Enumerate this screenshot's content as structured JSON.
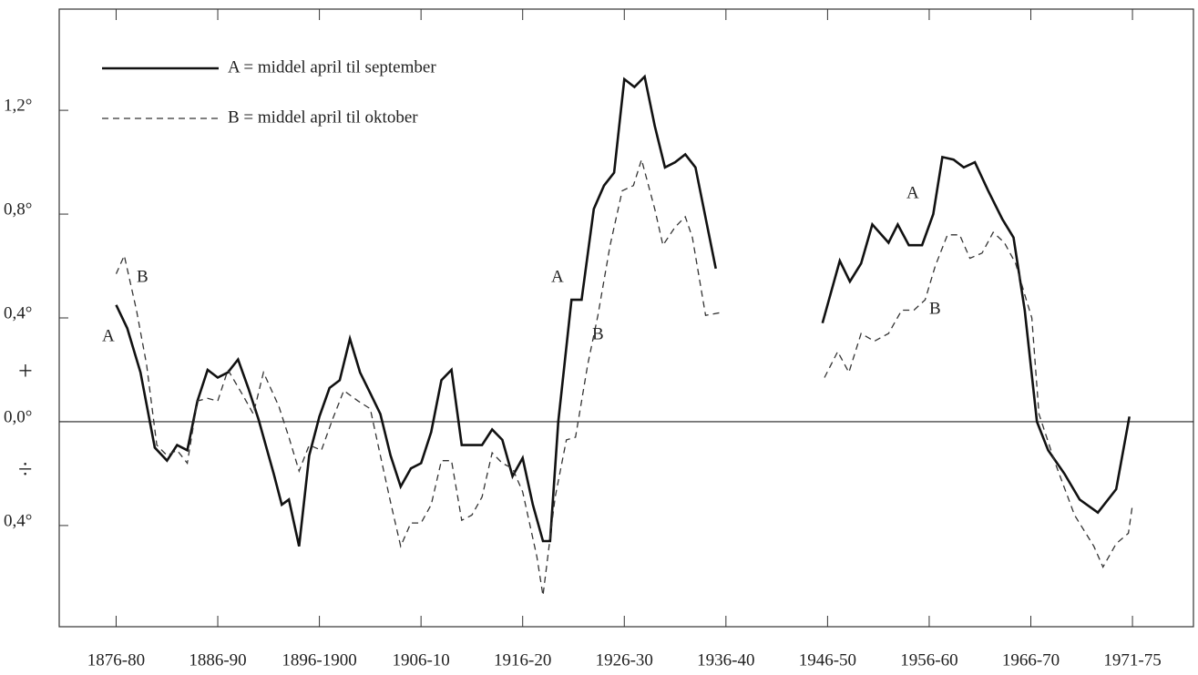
{
  "chart_data": {
    "type": "line",
    "xlim": [
      1870.4,
      1982
    ],
    "ylim": [
      -0.79,
      1.59
    ],
    "xticks": [
      {
        "value": 1876,
        "label": "1876-80"
      },
      {
        "value": 1886,
        "label": "1886-90"
      },
      {
        "value": 1896,
        "label": "1896-1900"
      },
      {
        "value": 1906,
        "label": "1906-10"
      },
      {
        "value": 1916,
        "label": "1916-20"
      },
      {
        "value": 1926,
        "label": "1926-30"
      },
      {
        "value": 1936,
        "label": "1936-40"
      },
      {
        "value": 1946,
        "label": "1946-50"
      },
      {
        "value": 1956,
        "label": "1956-60"
      },
      {
        "value": 1966,
        "label": "1966-70"
      },
      {
        "value": 1976,
        "label": "1971-75"
      }
    ],
    "yticks": [
      {
        "value": 1.2,
        "label": "1,2°"
      },
      {
        "value": 0.8,
        "label": "0,8°"
      },
      {
        "value": 0.4,
        "label": "0,4°"
      },
      {
        "value": 0,
        "label": "0,0°"
      },
      {
        "value": -0.4,
        "label": "0,4°"
      }
    ],
    "annotations": [
      "+",
      "÷",
      "A",
      "B",
      "A",
      "B",
      "A",
      "B"
    ],
    "series": [
      {
        "name": "A = middel april til september",
        "color": "#111",
        "dash": "none",
        "x": [
          1876,
          1877.1,
          1878.4,
          1879.8,
          1881,
          1882,
          1883,
          1884,
          1885,
          1886,
          1887,
          1888,
          1889,
          1890,
          1891.5,
          1892.3,
          1893,
          1894,
          1895,
          1896,
          1897,
          1898,
          1899,
          1900,
          1901,
          1902,
          1903,
          1904,
          1905,
          1906,
          1907,
          1908,
          1909,
          1910,
          1911,
          1912,
          1913,
          1914,
          1915,
          1916,
          1917,
          1918,
          1918.7,
          1919.5,
          1920.8,
          1921.8,
          1923,
          1924,
          1925,
          1926,
          1927,
          1928,
          1929,
          1930,
          1931,
          1932,
          1933,
          1935,
          1940,
          1945.5,
          1947.2,
          1948.2,
          1949.3,
          1950.4,
          1952,
          1952.9,
          1954,
          1955.3,
          1956.4,
          1957.3,
          1958.4,
          1959.4,
          1960.5,
          1961.8,
          1963.2,
          1964.3,
          1965.4,
          1966.6,
          1967.7,
          1969.3,
          1970.8,
          1972.6,
          1974.4,
          1975.7
        ],
        "values": [
          0.45,
          0.36,
          0.19,
          -0.1,
          -0.15,
          -0.09,
          -0.11,
          0.08,
          0.2,
          0.17,
          0.19,
          0.24,
          0.13,
          0.01,
          -0.2,
          -0.32,
          -0.3,
          -0.48,
          -0.13,
          0.02,
          0.13,
          0.16,
          0.32,
          0.19,
          0.11,
          0.03,
          -0.13,
          -0.25,
          -0.18,
          -0.16,
          -0.04,
          0.16,
          0.2,
          -0.09,
          -0.09,
          -0.09,
          -0.03,
          -0.07,
          -0.21,
          -0.14,
          -0.32,
          -0.46,
          -0.46,
          0.0,
          0.47,
          0.47,
          0.82,
          0.91,
          0.96,
          1.32,
          1.29,
          1.33,
          1.14,
          0.98,
          1.0,
          1.03,
          0.98,
          0.59,
          null,
          0.38,
          0.62,
          0.54,
          0.61,
          0.76,
          0.69,
          0.76,
          0.68,
          0.68,
          0.8,
          1.02,
          1.01,
          0.98,
          1.0,
          0.89,
          0.78,
          0.71,
          0.43,
          0.0,
          -0.11,
          -0.2,
          -0.3,
          -0.35,
          -0.26,
          0.02
        ]
      },
      {
        "name": "B = middel april til oktober",
        "color": "#333",
        "dash": "7 5",
        "x": [
          1876,
          1876.8,
          1878,
          1879,
          1880,
          1881,
          1882,
          1883,
          1884,
          1885,
          1886,
          1887,
          1888.5,
          1889.5,
          1890.5,
          1892,
          1893,
          1894,
          1895,
          1896.2,
          1897.3,
          1898.4,
          1899.8,
          1901,
          1902,
          1903,
          1904,
          1905,
          1906,
          1907,
          1908,
          1909,
          1910,
          1911,
          1912,
          1913,
          1914,
          1915,
          1916,
          1917.4,
          1918,
          1919.2,
          1920.3,
          1921.2,
          1922.4,
          1923.4,
          1924.6,
          1925.8,
          1926.9,
          1927.7,
          1929,
          1929.8,
          1931,
          1932,
          1932.7,
          1934,
          1935.4,
          1940,
          1945.7,
          1947,
          1948.1,
          1949.3,
          1950.6,
          1952,
          1953.3,
          1954.5,
          1955.6,
          1956.6,
          1957.8,
          1959,
          1960,
          1961.2,
          1962.3,
          1963.4,
          1964.5,
          1965.4,
          1966.1,
          1966.8,
          1968.4,
          1970.3,
          1972.2,
          1973.1,
          1974.4,
          1975.6,
          1976
        ],
        "values": [
          0.57,
          0.64,
          0.43,
          0.22,
          -0.09,
          -0.13,
          -0.11,
          -0.16,
          0.08,
          0.09,
          0.08,
          0.2,
          0.1,
          0.03,
          0.19,
          0.06,
          -0.06,
          -0.19,
          -0.09,
          -0.11,
          0.01,
          0.12,
          0.08,
          0.05,
          -0.13,
          -0.31,
          -0.48,
          -0.39,
          -0.39,
          -0.32,
          -0.15,
          -0.15,
          -0.38,
          -0.36,
          -0.29,
          -0.12,
          -0.16,
          -0.18,
          -0.27,
          -0.52,
          -0.67,
          -0.29,
          -0.07,
          -0.06,
          0.22,
          0.41,
          0.68,
          0.89,
          0.91,
          1.01,
          0.82,
          0.68,
          0.75,
          0.79,
          0.71,
          0.41,
          0.42,
          null,
          0.17,
          0.27,
          0.19,
          0.34,
          0.31,
          0.34,
          0.43,
          0.43,
          0.47,
          0.6,
          0.72,
          0.72,
          0.63,
          0.65,
          0.73,
          0.69,
          0.61,
          0.49,
          0.4,
          0.03,
          -0.16,
          -0.36,
          -0.48,
          -0.56,
          -0.47,
          -0.43,
          -0.32
        ]
      }
    ]
  }
}
